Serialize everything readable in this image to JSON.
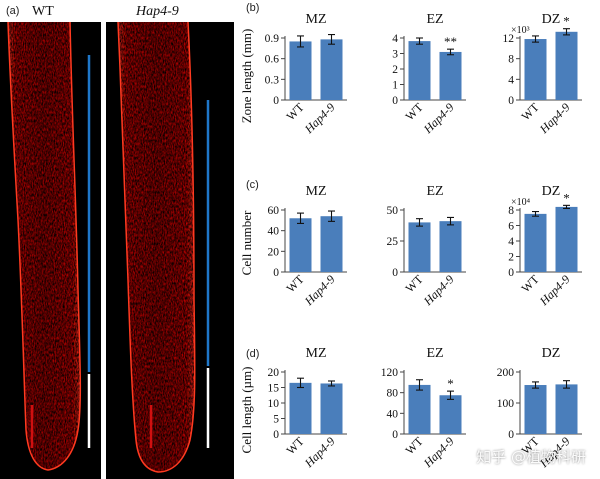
{
  "panel_a": {
    "letter": "(a)",
    "genotypes": [
      "WT",
      "Hap4-9"
    ]
  },
  "panel_letters": [
    "(b)",
    "(c)",
    "(d)"
  ],
  "row_ylabels": [
    "Zone length (mm)",
    "Cell number",
    "Cell length (µm)"
  ],
  "watermark": "知乎 @植物科研",
  "colors": {
    "bar": "#4a7ebb",
    "root_fluorescence": "#e00000",
    "scale_bar_blue": "#1f77c9",
    "scale_bar_white": "#ffffff",
    "scale_bar_red": "#d01010"
  },
  "chart_data": [
    {
      "type": "bar",
      "title": "MZ",
      "row": 0,
      "col": 0,
      "categories": [
        "WT",
        "Hap4-9"
      ],
      "values": [
        0.85,
        0.88
      ],
      "errors": [
        0.08,
        0.07
      ],
      "ylim": [
        0,
        0.9
      ],
      "yticks": [
        "0",
        "0.3",
        "0.6",
        "0.9"
      ],
      "ylabel": "Zone length (mm)",
      "significance": [
        "",
        ""
      ],
      "multiplier": ""
    },
    {
      "type": "bar",
      "title": "EZ",
      "row": 0,
      "col": 1,
      "categories": [
        "WT",
        "Hap4-9"
      ],
      "values": [
        3.8,
        3.1
      ],
      "errors": [
        0.2,
        0.18
      ],
      "ylim": [
        0,
        4
      ],
      "yticks": [
        "0",
        "1",
        "2",
        "3",
        "4"
      ],
      "ylabel": "",
      "significance": [
        "",
        "**"
      ],
      "multiplier": ""
    },
    {
      "type": "bar",
      "title": "DZ",
      "row": 0,
      "col": 2,
      "categories": [
        "WT",
        "Hap4-9"
      ],
      "values": [
        11.8,
        13.2
      ],
      "errors": [
        0.6,
        0.6
      ],
      "ylim": [
        0,
        12
      ],
      "yticks": [
        "0",
        "4",
        "8",
        "12"
      ],
      "ylabel": "",
      "significance": [
        "",
        "*"
      ],
      "multiplier": "×10³"
    },
    {
      "type": "bar",
      "title": "MZ",
      "row": 1,
      "col": 0,
      "categories": [
        "WT",
        "Hap4-9"
      ],
      "values": [
        52,
        54
      ],
      "errors": [
        5,
        5
      ],
      "ylim": [
        0,
        60
      ],
      "yticks": [
        "0",
        "20",
        "40",
        "60"
      ],
      "ylabel": "Cell number",
      "significance": [
        "",
        ""
      ],
      "multiplier": ""
    },
    {
      "type": "bar",
      "title": "EZ",
      "row": 1,
      "col": 1,
      "categories": [
        "WT",
        "Hap4-9"
      ],
      "values": [
        40,
        41
      ],
      "errors": [
        3,
        3
      ],
      "ylim": [
        0,
        50
      ],
      "yticks": [
        "0",
        "25",
        "50"
      ],
      "ylabel": "",
      "significance": [
        "",
        ""
      ],
      "multiplier": ""
    },
    {
      "type": "bar",
      "title": "DZ",
      "row": 1,
      "col": 2,
      "categories": [
        "WT",
        "Hap4-9"
      ],
      "values": [
        7.5,
        8.4
      ],
      "errors": [
        0.3,
        0.2
      ],
      "ylim": [
        0,
        8
      ],
      "yticks": [
        "0",
        "2",
        "4",
        "6",
        "8"
      ],
      "ylabel": "",
      "significance": [
        "",
        "*"
      ],
      "multiplier": "×10⁴"
    },
    {
      "type": "bar",
      "title": "MZ",
      "row": 2,
      "col": 0,
      "categories": [
        "WT",
        "Hap4-9"
      ],
      "values": [
        16.5,
        16.3
      ],
      "errors": [
        1.5,
        0.8
      ],
      "ylim": [
        0,
        20
      ],
      "yticks": [
        "0",
        "5",
        "10",
        "15",
        "20"
      ],
      "ylabel": "Cell length (µm)",
      "significance": [
        "",
        ""
      ],
      "multiplier": ""
    },
    {
      "type": "bar",
      "title": "EZ",
      "row": 2,
      "col": 1,
      "categories": [
        "WT",
        "Hap4-9"
      ],
      "values": [
        95,
        75
      ],
      "errors": [
        10,
        8
      ],
      "ylim": [
        0,
        120
      ],
      "yticks": [
        "0",
        "40",
        "80",
        "120"
      ],
      "ylabel": "",
      "significance": [
        "",
        "*"
      ],
      "multiplier": ""
    },
    {
      "type": "bar",
      "title": "DZ",
      "row": 2,
      "col": 2,
      "categories": [
        "WT",
        "Hap4-9"
      ],
      "values": [
        158,
        160
      ],
      "errors": [
        10,
        12
      ],
      "ylim": [
        0,
        200
      ],
      "yticks": [
        "0",
        "100",
        "200"
      ],
      "ylabel": "",
      "significance": [
        "",
        ""
      ],
      "multiplier": ""
    }
  ]
}
